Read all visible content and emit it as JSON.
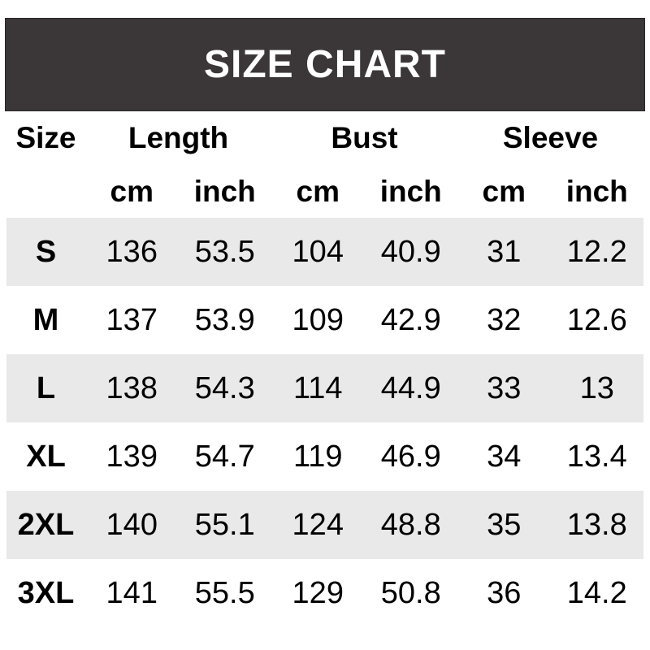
{
  "title": "SIZE CHART",
  "colors": {
    "header_bg": "#3b3637",
    "header_text": "#ffffff",
    "row_alt_bg": "#e9e9e9",
    "body_text": "#000000"
  },
  "table": {
    "group_headers": {
      "size": "Size",
      "length": "Length",
      "bust": "Bust",
      "sleeve": "Sleeve"
    },
    "units": {
      "length_cm": "cm",
      "length_inch": "inch",
      "bust_cm": "cm",
      "bust_inch": "inch",
      "sleeve_cm": "cm",
      "sleeve_inch": "inch"
    },
    "rows": [
      {
        "size": "S",
        "length_cm": "136",
        "length_inch": "53.5",
        "bust_cm": "104",
        "bust_inch": "40.9",
        "sleeve_cm": "31",
        "sleeve_inch": "12.2"
      },
      {
        "size": "M",
        "length_cm": "137",
        "length_inch": "53.9",
        "bust_cm": "109",
        "bust_inch": "42.9",
        "sleeve_cm": "32",
        "sleeve_inch": "12.6"
      },
      {
        "size": "L",
        "length_cm": "138",
        "length_inch": "54.3",
        "bust_cm": "114",
        "bust_inch": "44.9",
        "sleeve_cm": "33",
        "sleeve_inch": "13"
      },
      {
        "size": "XL",
        "length_cm": "139",
        "length_inch": "54.7",
        "bust_cm": "119",
        "bust_inch": "46.9",
        "sleeve_cm": "34",
        "sleeve_inch": "13.4"
      },
      {
        "size": "2XL",
        "length_cm": "140",
        "length_inch": "55.1",
        "bust_cm": "124",
        "bust_inch": "48.8",
        "sleeve_cm": "35",
        "sleeve_inch": "13.8"
      },
      {
        "size": "3XL",
        "length_cm": "141",
        "length_inch": "55.5",
        "bust_cm": "129",
        "bust_inch": "50.8",
        "sleeve_cm": "36",
        "sleeve_inch": "14.2"
      }
    ]
  },
  "chart_data": {
    "type": "table",
    "title": "SIZE CHART",
    "columns": [
      "Size",
      "Length cm",
      "Length inch",
      "Bust cm",
      "Bust inch",
      "Sleeve cm",
      "Sleeve inch"
    ],
    "rows": [
      [
        "S",
        136,
        53.5,
        104,
        40.9,
        31,
        12.2
      ],
      [
        "M",
        137,
        53.9,
        109,
        42.9,
        32,
        12.6
      ],
      [
        "L",
        138,
        54.3,
        114,
        44.9,
        33,
        13
      ],
      [
        "XL",
        139,
        54.7,
        119,
        46.9,
        34,
        13.4
      ],
      [
        "2XL",
        140,
        55.1,
        124,
        48.8,
        35,
        13.8
      ],
      [
        "3XL",
        141,
        55.5,
        129,
        50.8,
        36,
        14.2
      ]
    ],
    "layout_hints": {
      "row_banding": "alternating gray starting at first data row",
      "header_style": "bold black on white, grouped columns with cm/inch sub-headers"
    }
  }
}
